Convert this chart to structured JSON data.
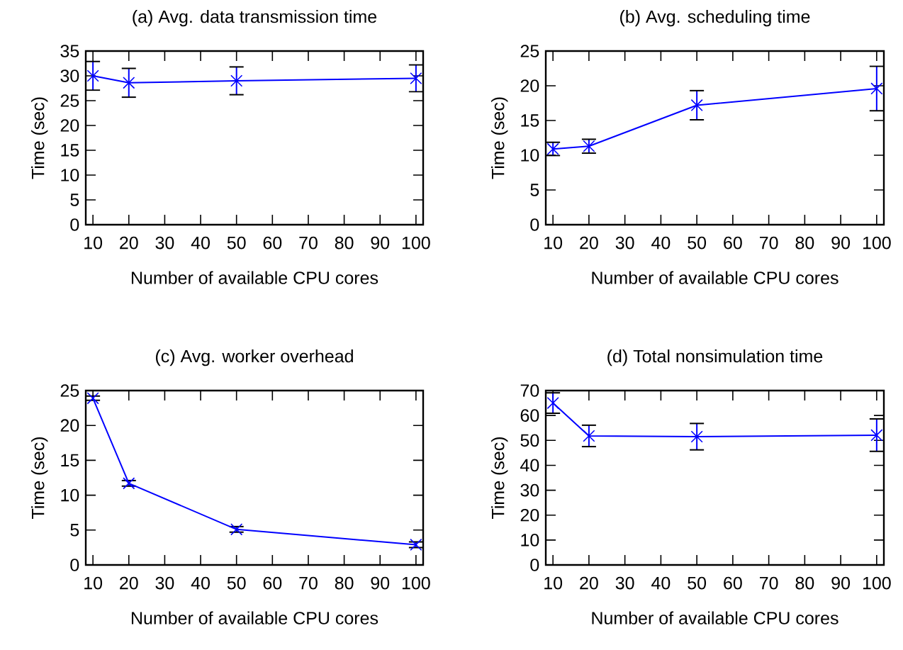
{
  "chart_data": [
    {
      "type": "line",
      "title": "(a) Avg. data transmission time",
      "xlabel": "Number of available CPU cores",
      "ylabel": "Time (sec)",
      "x": [
        10,
        20,
        50,
        100
      ],
      "values": [
        30.0,
        28.6,
        29.0,
        29.5
      ],
      "errors": [
        2.9,
        2.9,
        2.8,
        2.7
      ],
      "color": "#0000ff",
      "marker": "cross",
      "xlim": [
        8,
        102
      ],
      "xticks": [
        10,
        20,
        30,
        40,
        50,
        60,
        70,
        80,
        90,
        100
      ],
      "ylim": [
        0,
        35
      ],
      "yticks": [
        0,
        5,
        10,
        15,
        20,
        25,
        30,
        35
      ]
    },
    {
      "type": "line",
      "title": "(b) Avg. scheduling time",
      "xlabel": "Number of available CPU cores",
      "ylabel": "Time (sec)",
      "x": [
        10,
        20,
        50,
        100
      ],
      "values": [
        10.9,
        11.3,
        17.2,
        19.6
      ],
      "errors": [
        0.95,
        1.0,
        2.1,
        3.2
      ],
      "color": "#0000ff",
      "marker": "cross",
      "xlim": [
        8,
        102
      ],
      "xticks": [
        10,
        20,
        30,
        40,
        50,
        60,
        70,
        80,
        90,
        100
      ],
      "ylim": [
        0,
        25
      ],
      "yticks": [
        0,
        5,
        10,
        15,
        20,
        25
      ]
    },
    {
      "type": "line",
      "title": "(c) Avg. worker overhead",
      "xlabel": "Number of available CPU cores",
      "ylabel": "Time (sec)",
      "x": [
        10,
        20,
        50,
        100
      ],
      "values": [
        23.9,
        11.7,
        5.1,
        2.9
      ],
      "errors": [
        0.3,
        0.4,
        0.4,
        0.4
      ],
      "color": "#0000ff",
      "marker": "cross",
      "xlim": [
        8,
        102
      ],
      "xticks": [
        10,
        20,
        30,
        40,
        50,
        60,
        70,
        80,
        90,
        100
      ],
      "ylim": [
        0,
        25
      ],
      "yticks": [
        0,
        5,
        10,
        15,
        20,
        25
      ]
    },
    {
      "type": "line",
      "title": "(d) Total nonsimulation time",
      "xlabel": "Number of available CPU cores",
      "ylabel": "Time (sec)",
      "x": [
        10,
        20,
        50,
        100
      ],
      "values": [
        65.0,
        51.8,
        51.5,
        52.1
      ],
      "errors": [
        4.1,
        4.3,
        5.3,
        6.5
      ],
      "color": "#0000ff",
      "marker": "cross",
      "xlim": [
        8,
        102
      ],
      "xticks": [
        10,
        20,
        30,
        40,
        50,
        60,
        70,
        80,
        90,
        100
      ],
      "ylim": [
        0,
        70
      ],
      "yticks": [
        0,
        10,
        20,
        30,
        40,
        50,
        60,
        70
      ]
    }
  ]
}
